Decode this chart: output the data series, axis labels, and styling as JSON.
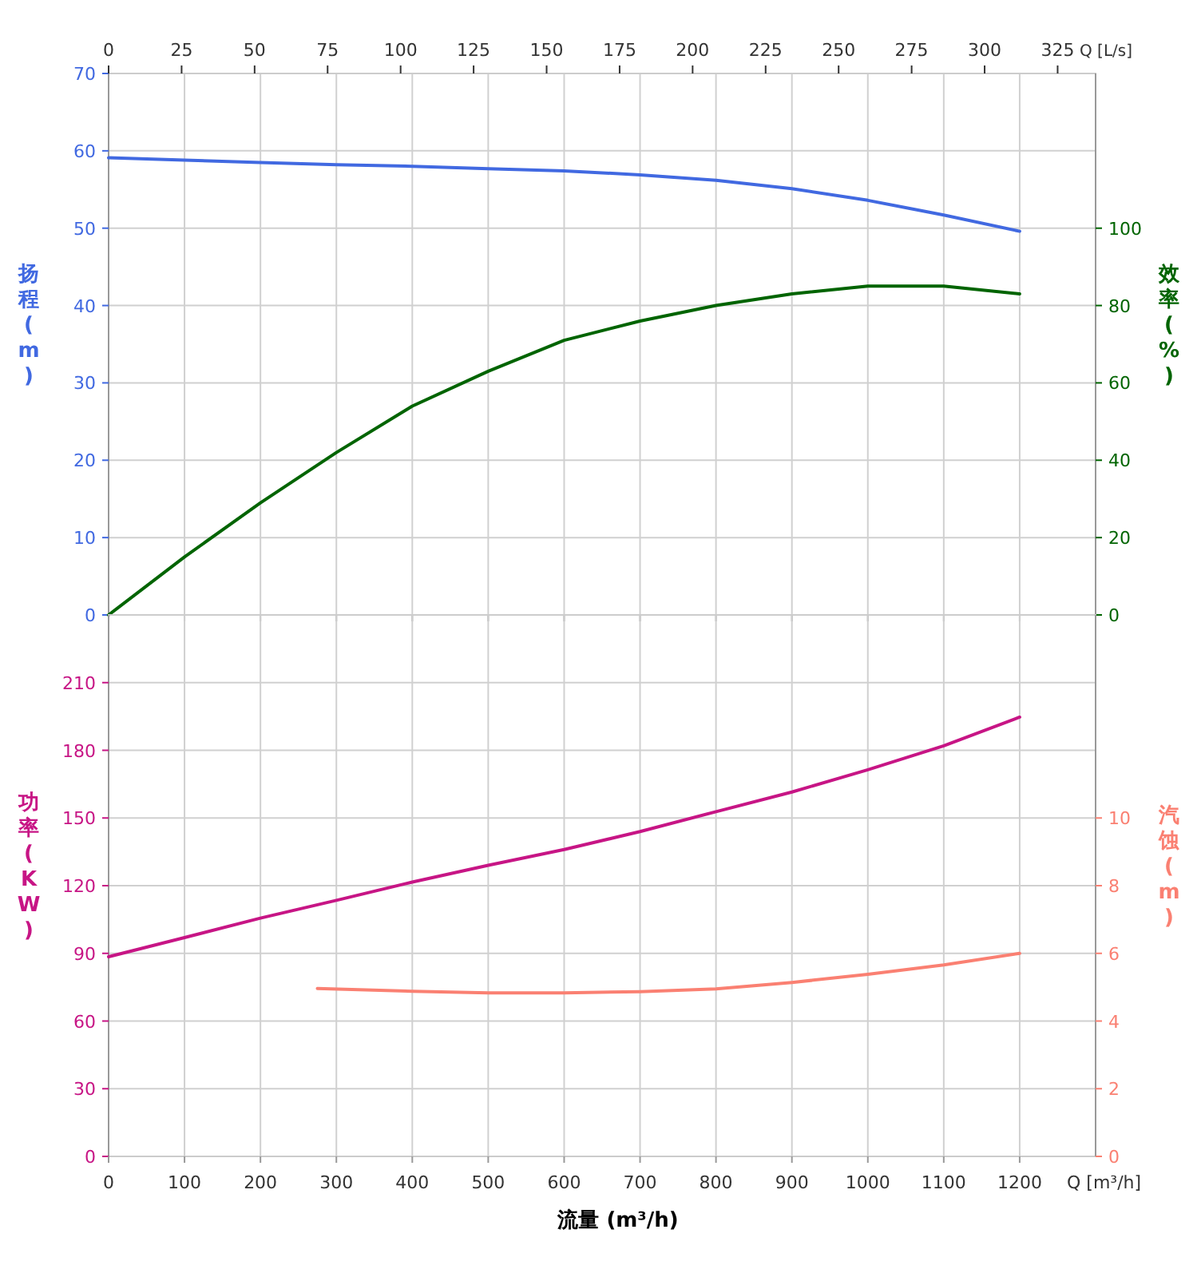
{
  "chart_data": [
    {
      "type": "line",
      "x": [
        0,
        100,
        200,
        300,
        400,
        500,
        600,
        700,
        800,
        900,
        1000,
        1100,
        1200
      ],
      "xlim": [
        0,
        1300
      ],
      "xticks": [
        0,
        100,
        200,
        300,
        400,
        500,
        600,
        700,
        800,
        900,
        1000,
        1100,
        1200
      ],
      "x2lim": [
        0,
        338
      ],
      "x2ticks": [
        0,
        25,
        50,
        75,
        100,
        125,
        150,
        175,
        200,
        225,
        250,
        275,
        300,
        325
      ],
      "x2label": "Q [L/s]",
      "ylabel": "扬程 (m)",
      "y2label": "效率 (%)",
      "ylim": [
        0,
        70
      ],
      "yticks": [
        0,
        10,
        20,
        30,
        40,
        50,
        60,
        70
      ],
      "y2lim": [
        0,
        140
      ],
      "y2ticks": [
        0,
        20,
        40,
        60,
        80,
        100
      ],
      "tick_labels": "y",
      "grid": true,
      "series": [
        {
          "color": "#4169e1",
          "values": [
            59.1,
            58.8,
            58.5,
            58.2,
            58.0,
            57.7,
            57.4,
            56.9,
            56.2,
            55.1,
            53.6,
            51.7,
            49.6
          ]
        },
        {
          "color": "#006400",
          "axis": "y2",
          "values": [
            0,
            15,
            29,
            42,
            54,
            63,
            71,
            76,
            80,
            83,
            85,
            85,
            83
          ]
        }
      ]
    },
    {
      "type": "line",
      "x": [
        0,
        100,
        200,
        300,
        400,
        500,
        600,
        700,
        800,
        900,
        1000,
        1100,
        1200
      ],
      "xlim": [
        0,
        1300
      ],
      "xticks": [
        0,
        100,
        200,
        300,
        400,
        500,
        600,
        700,
        800,
        900,
        1000,
        1100,
        1200
      ],
      "xlabel": "流量 (m³/h)",
      "ylabel": "功率 (KW)",
      "y2label": "汽蚀 (m)",
      "ylim": [
        0,
        240
      ],
      "yticks": [
        0,
        30,
        60,
        90,
        120,
        150,
        180,
        210
      ],
      "y2lim": [
        0,
        16
      ],
      "y2ticks": [
        0,
        2,
        4,
        6,
        8,
        10
      ],
      "grid": true,
      "annotations": [
        "Q [m³/h]"
      ],
      "series": [
        {
          "color": "#c71585",
          "values": [
            88.5,
            97,
            105.6,
            113.5,
            121.6,
            129,
            136,
            144,
            152.8,
            161.5,
            171.4,
            182,
            194.7
          ]
        },
        {
          "color": "#fa8072",
          "axis": "y2",
          "x": [
            275,
            400,
            500,
            600,
            700,
            800,
            900,
            1000,
            1100,
            1200
          ],
          "values": [
            4.96,
            4.88,
            4.83,
            4.83,
            4.87,
            4.95,
            5.14,
            5.38,
            5.66,
            6.0
          ]
        }
      ]
    }
  ]
}
